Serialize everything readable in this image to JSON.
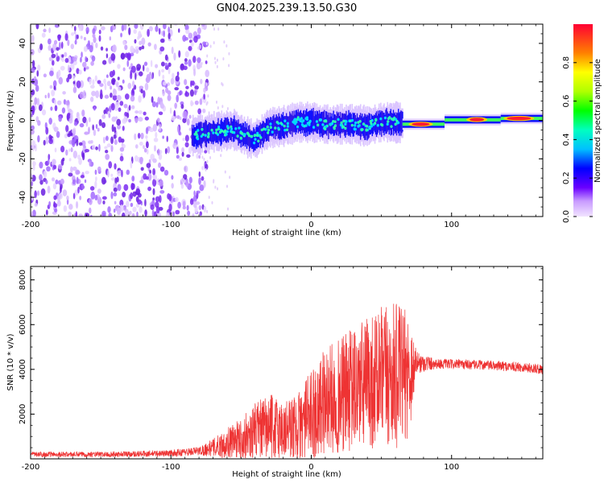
{
  "title": "GN04.2025.239.13.50.G30",
  "chart_data": [
    {
      "type": "heatmap",
      "name": "spectrogram",
      "xlabel": "Height of straight line (km)",
      "ylabel": "Frequency (Hz)",
      "xlim": [
        -200,
        165
      ],
      "ylim": [
        -50,
        50
      ],
      "xticks": [
        -200,
        -100,
        0,
        100
      ],
      "xtick_labels": [
        "-200",
        "-100",
        "0",
        "100"
      ],
      "yticks": [
        -40,
        -20,
        0,
        20,
        40
      ],
      "ytick_labels": [
        "-40",
        "-20",
        "0",
        "20",
        "40"
      ],
      "noise_region_x": [
        -200,
        -80
      ],
      "signal_track": [
        {
          "x": -85,
          "f": -8
        },
        {
          "x": -70,
          "f": -6
        },
        {
          "x": -55,
          "f": -5
        },
        {
          "x": -45,
          "f": -9
        },
        {
          "x": -40,
          "f": -10
        },
        {
          "x": -30,
          "f": -4
        },
        {
          "x": -20,
          "f": -3
        },
        {
          "x": -10,
          "f": -1
        },
        {
          "x": 0,
          "f": -1
        },
        {
          "x": 10,
          "f": -2
        },
        {
          "x": 20,
          "f": -2
        },
        {
          "x": 30,
          "f": -2
        },
        {
          "x": 40,
          "f": -3
        },
        {
          "x": 50,
          "f": -1
        },
        {
          "x": 60,
          "f": -1
        },
        {
          "x": 70,
          "f": -2
        },
        {
          "x": 90,
          "f": -2
        },
        {
          "x": 110,
          "f": 0
        },
        {
          "x": 130,
          "f": 1
        },
        {
          "x": 165,
          "f": 1
        }
      ],
      "colorbar": {
        "label": "Normalized spectral amplitude",
        "range": [
          0,
          1
        ],
        "ticks": [
          0.0,
          0.2,
          0.4,
          0.6,
          0.8
        ],
        "tick_labels": [
          "0.0",
          "0.2",
          "0.4",
          "0.6",
          "0.8"
        ]
      }
    },
    {
      "type": "line",
      "name": "snr",
      "xlabel": "Height of straight line (km)",
      "ylabel": "SNR (10 * v/v)",
      "xlim": [
        -200,
        165
      ],
      "ylim": [
        0,
        8600
      ],
      "xticks": [
        -200,
        -100,
        0,
        100
      ],
      "xtick_labels": [
        "-200",
        "-100",
        "0",
        "100"
      ],
      "yticks": [
        2000,
        4000,
        6000,
        8000
      ],
      "ytick_labels": [
        "2000",
        "4000",
        "6000",
        "8000"
      ],
      "color": "#ee3333",
      "series": [
        {
          "name": "SNR",
          "envelope": [
            {
              "x": -200,
              "mean": 200,
              "spread": 120
            },
            {
              "x": -150,
              "mean": 200,
              "spread": 120
            },
            {
              "x": -100,
              "mean": 250,
              "spread": 150
            },
            {
              "x": -80,
              "mean": 350,
              "spread": 200
            },
            {
              "x": -70,
              "mean": 500,
              "spread": 400
            },
            {
              "x": -60,
              "mean": 700,
              "spread": 700
            },
            {
              "x": -50,
              "mean": 900,
              "spread": 900
            },
            {
              "x": -40,
              "mean": 1200,
              "spread": 1300
            },
            {
              "x": -30,
              "mean": 1400,
              "spread": 1500
            },
            {
              "x": -20,
              "mean": 1300,
              "spread": 1400
            },
            {
              "x": -10,
              "mean": 1400,
              "spread": 1500
            },
            {
              "x": 0,
              "mean": 2000,
              "spread": 2000
            },
            {
              "x": 10,
              "mean": 2600,
              "spread": 2400
            },
            {
              "x": 20,
              "mean": 2800,
              "spread": 2600
            },
            {
              "x": 30,
              "mean": 3100,
              "spread": 2800
            },
            {
              "x": 40,
              "mean": 3400,
              "spread": 3000
            },
            {
              "x": 50,
              "mean": 3600,
              "spread": 3200
            },
            {
              "x": 60,
              "mean": 3700,
              "spread": 3300
            },
            {
              "x": 70,
              "mean": 3800,
              "spread": 2800
            },
            {
              "x": 75,
              "mean": 4300,
              "spread": 500
            },
            {
              "x": 90,
              "mean": 4250,
              "spread": 220
            },
            {
              "x": 120,
              "mean": 4200,
              "spread": 220
            },
            {
              "x": 150,
              "mean": 4100,
              "spread": 220
            },
            {
              "x": 165,
              "mean": 4000,
              "spread": 220
            }
          ]
        }
      ]
    }
  ]
}
